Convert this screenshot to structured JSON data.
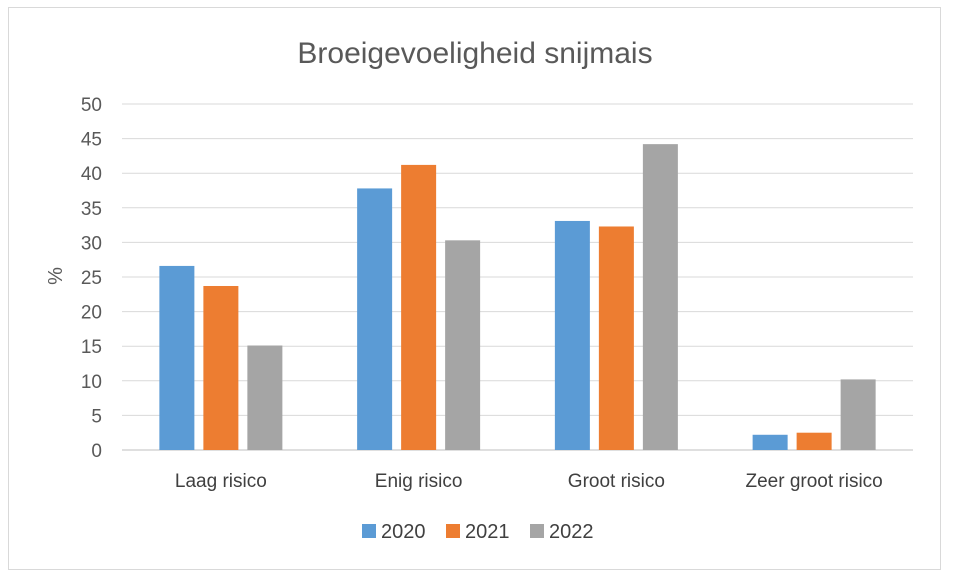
{
  "chart_data": {
    "type": "bar",
    "title": "Broeigevoeligheid snijmais",
    "xlabel": "",
    "ylabel": "%",
    "ylim": [
      0,
      50
    ],
    "yticks": [
      0,
      5,
      10,
      15,
      20,
      25,
      30,
      35,
      40,
      45,
      50
    ],
    "grid": true,
    "legend_position": "bottom",
    "categories": [
      "Laag risico",
      "Enig risico",
      "Groot risico",
      "Zeer groot risico"
    ],
    "series": [
      {
        "name": "2020",
        "color": "#5b9bd5",
        "values": [
          26.6,
          37.8,
          33.1,
          2.2
        ]
      },
      {
        "name": "2021",
        "color": "#ed7d31",
        "values": [
          23.7,
          41.2,
          32.3,
          2.5
        ]
      },
      {
        "name": "2022",
        "color": "#a5a5a5",
        "values": [
          15.1,
          30.3,
          44.2,
          10.2
        ]
      }
    ]
  }
}
